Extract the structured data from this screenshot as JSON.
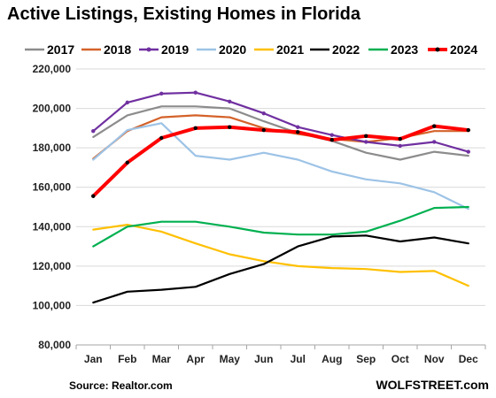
{
  "chart_data": {
    "type": "line",
    "title": "Active Listings, Existing Homes in Florida",
    "xlabel": "",
    "ylabel": "",
    "ylim": [
      80000,
      220000
    ],
    "yticks": [
      80000,
      100000,
      120000,
      140000,
      160000,
      180000,
      200000,
      220000
    ],
    "ytick_labels": [
      "80,000",
      "100,000",
      "120,000",
      "140,000",
      "160,000",
      "180,000",
      "200,000",
      "220,000"
    ],
    "categories": [
      "Jan",
      "Feb",
      "Mar",
      "Apr",
      "May",
      "Jun",
      "Jul",
      "Aug",
      "Sep",
      "Oct",
      "Nov",
      "Dec"
    ],
    "grid": true,
    "legend_position": "top",
    "series": [
      {
        "name": "2017",
        "color": "#8c8c8c",
        "markers": false,
        "values": [
          185500,
          196500,
          201000,
          201000,
          200000,
          193500,
          187500,
          183500,
          177500,
          174000,
          178000,
          176000
        ]
      },
      {
        "name": "2018",
        "color": "#d4622a",
        "markers": false,
        "values": [
          174500,
          188500,
          195500,
          196500,
          195500,
          190000,
          187000,
          184500,
          183000,
          185000,
          188500,
          188500
        ]
      },
      {
        "name": "2019",
        "color": "#7030a0",
        "markers": true,
        "values": [
          188500,
          203000,
          207500,
          208000,
          203500,
          197500,
          190500,
          186500,
          183000,
          181000,
          183000,
          178000
        ]
      },
      {
        "name": "2020",
        "color": "#9dc3e6",
        "markers": false,
        "values": [
          174000,
          189000,
          192500,
          176000,
          174000,
          177500,
          174000,
          168000,
          164000,
          162000,
          157500,
          149000
        ]
      },
      {
        "name": "2021",
        "color": "#ffc000",
        "markers": false,
        "values": [
          138500,
          141000,
          137500,
          131500,
          126000,
          122500,
          120000,
          119000,
          118500,
          117000,
          117500,
          110000
        ]
      },
      {
        "name": "2022",
        "color": "#000000",
        "markers": false,
        "values": [
          101500,
          107000,
          108000,
          109500,
          116000,
          121000,
          130000,
          135000,
          135500,
          132500,
          134500,
          131500
        ]
      },
      {
        "name": "2023",
        "color": "#00b050",
        "markers": false,
        "values": [
          130000,
          140000,
          142500,
          142500,
          140000,
          137000,
          136000,
          136000,
          137500,
          143000,
          149500,
          150000
        ]
      },
      {
        "name": "2024",
        "color": "#ff0000",
        "markers": true,
        "values": [
          155500,
          172500,
          185000,
          190000,
          190500,
          189000,
          188000,
          184000,
          186000,
          184500,
          191000,
          189000
        ]
      }
    ],
    "source": "Source: Realtor.com",
    "credit": "WOLFSTREET.com"
  }
}
